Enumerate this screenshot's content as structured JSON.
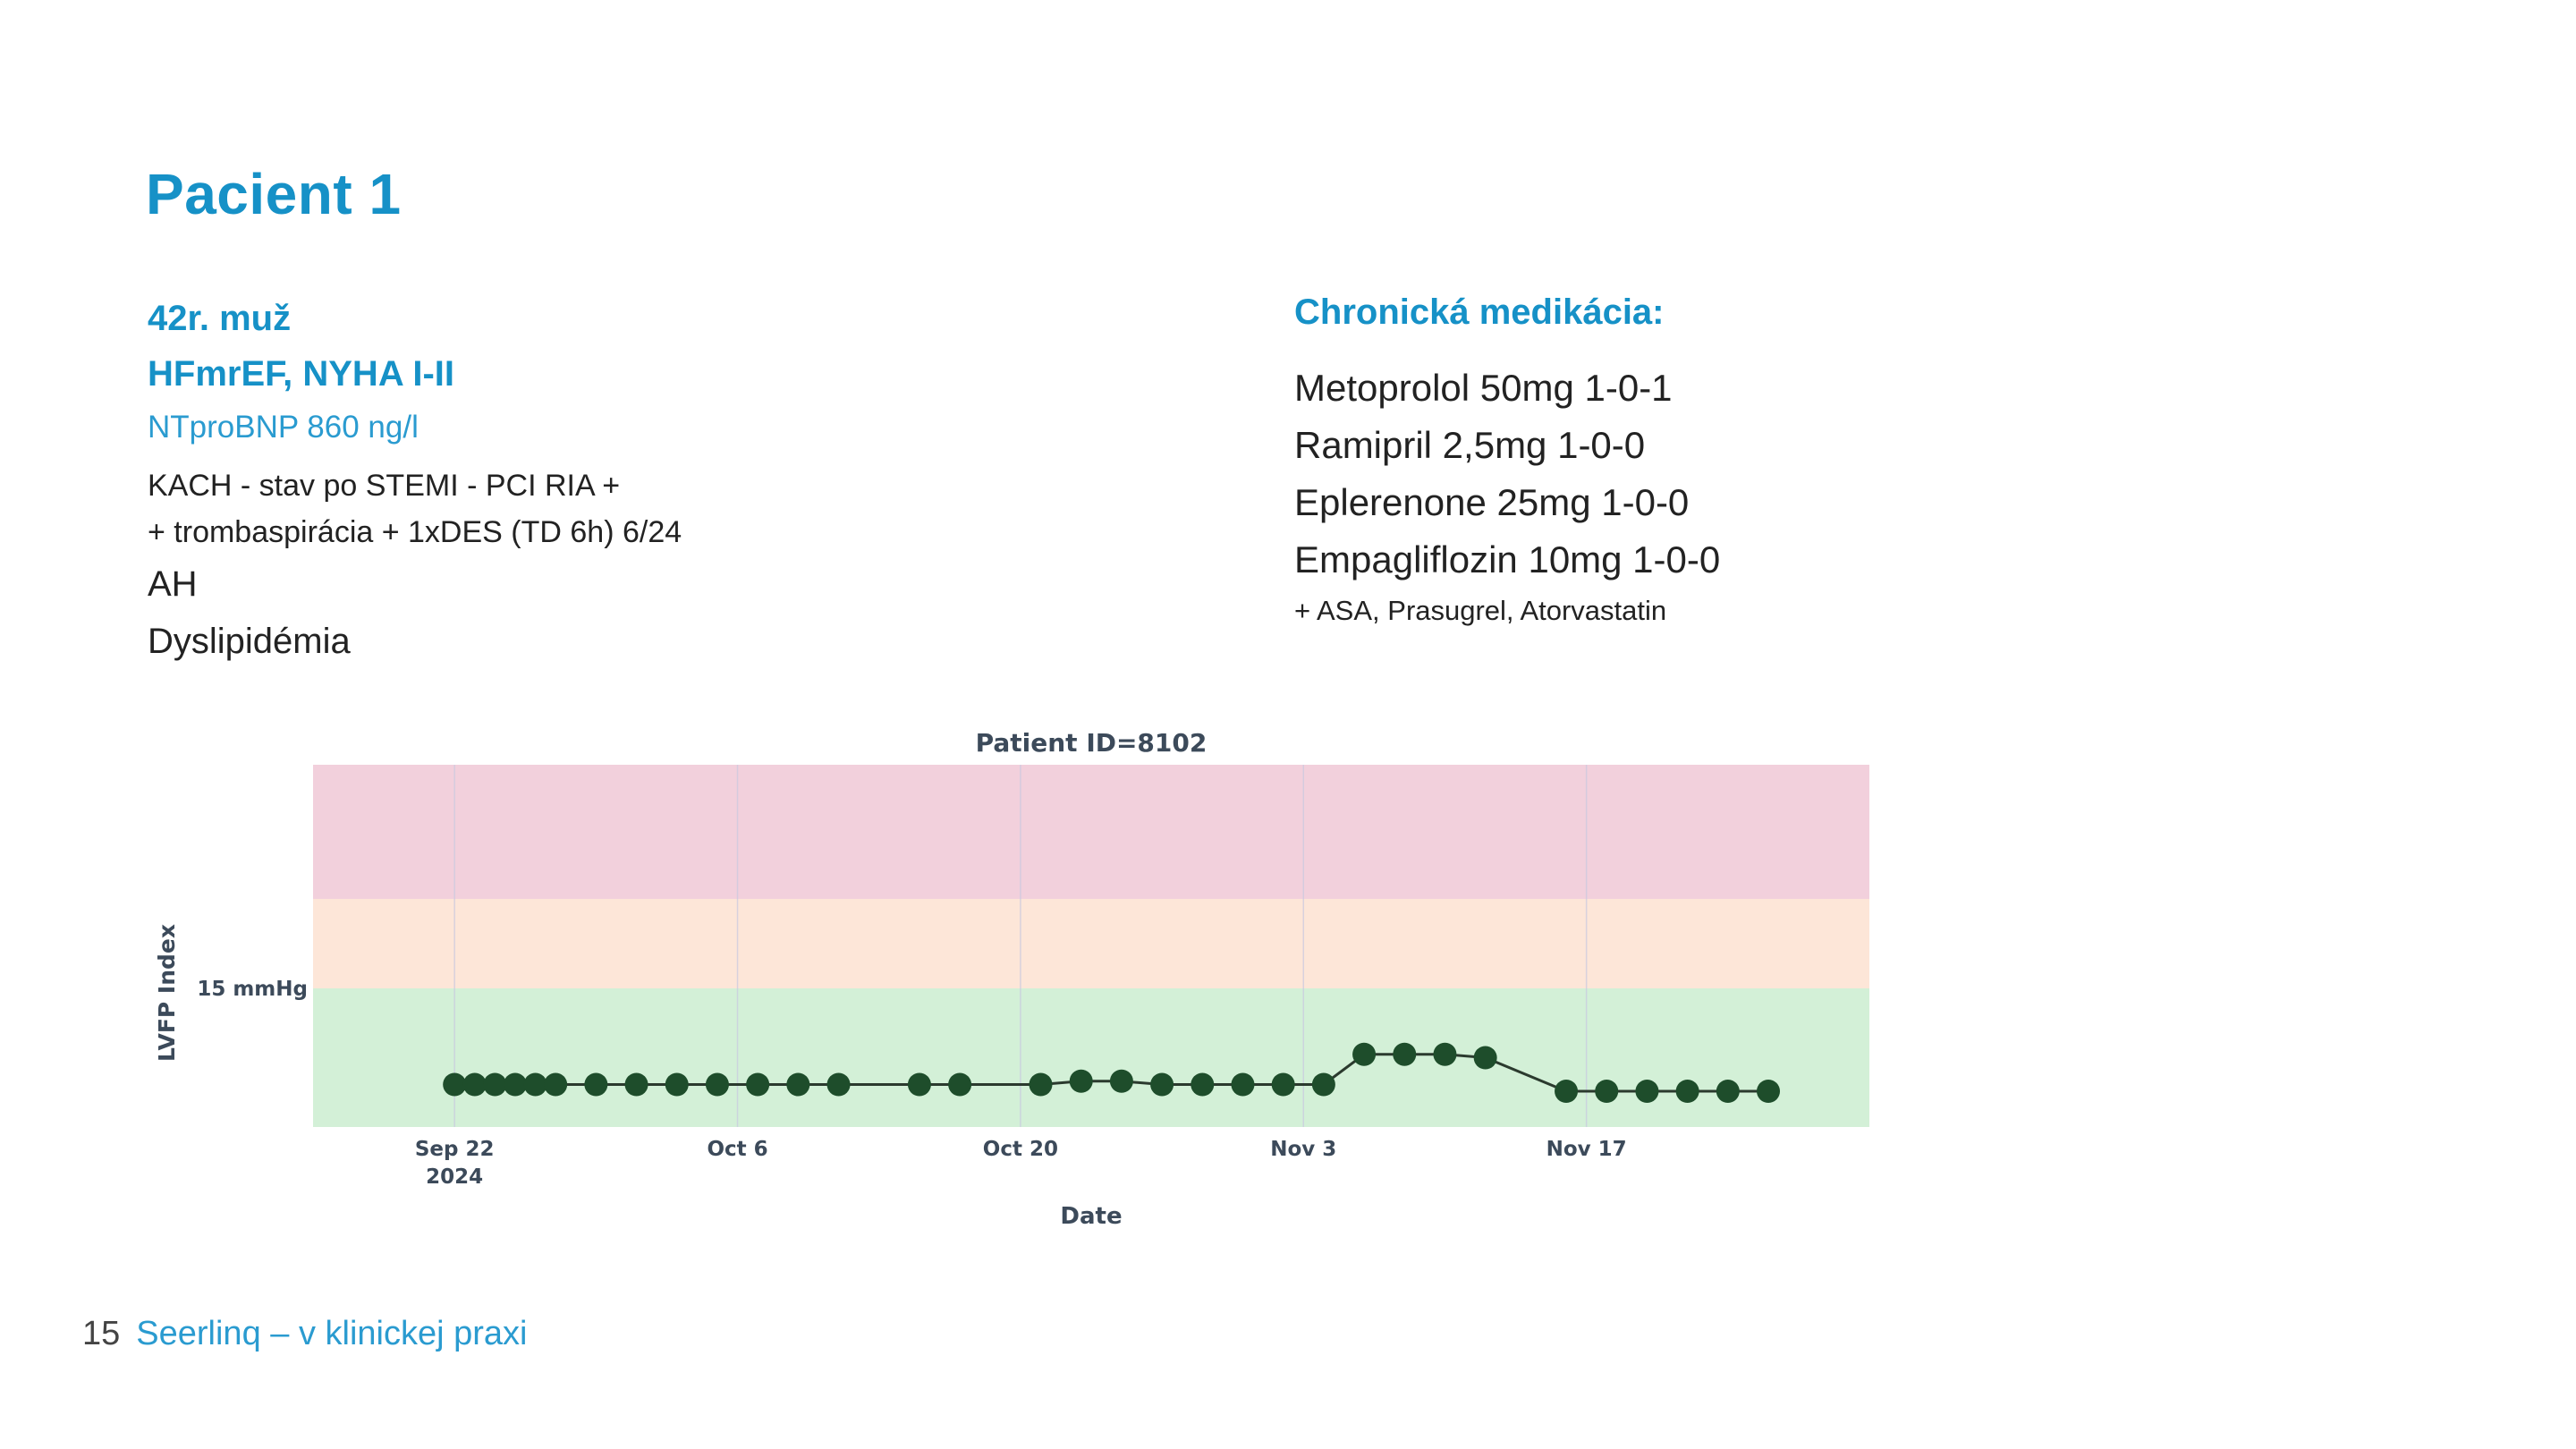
{
  "slide": {
    "title": "Pacient 1",
    "left": {
      "line1": "42r. muž",
      "line2": "HFmrEF, NYHA I-II",
      "line3": "NTproBNP 860 ng/l",
      "line4": "KACH - stav po STEMI - PCI RIA +",
      "line5": "+ trombaspirácia + 1xDES (TD 6h) 6/24",
      "line6": "AH",
      "line7": "Dyslipidémia"
    },
    "right": {
      "heading": "Chronická medikácia:",
      "meds": [
        "Metoprolol 50mg 1-0-1",
        "Ramipril 2,5mg 1-0-0",
        "Eplerenone 25mg 1-0-0",
        "Empagliflozin 10mg 1-0-0"
      ],
      "note": "+ ASA, Prasugrel, Atorvastatin"
    },
    "footer": {
      "page_number": "15",
      "text": "Seerlinq – v klinickej praxi"
    }
  },
  "colors": {
    "accent": "#1691c7",
    "band_red": "#f2d0dc",
    "band_orange": "#fde6d8",
    "band_green": "#d3f0d7",
    "marker": "#1e4d2b"
  },
  "chart_data": {
    "type": "line",
    "title": "Patient ID=8102",
    "xlabel": "Date",
    "ylabel": "LVFP Index",
    "y_tick_label": "15 mmHg",
    "x_ticks": [
      {
        "date": "2024-09-22",
        "label": "Sep 22",
        "sublabel": "2024"
      },
      {
        "date": "2024-10-06",
        "label": "Oct 6",
        "sublabel": ""
      },
      {
        "date": "2024-10-20",
        "label": "Oct 20",
        "sublabel": ""
      },
      {
        "date": "2024-11-03",
        "label": "Nov 3",
        "sublabel": ""
      },
      {
        "date": "2024-11-17",
        "label": "Nov 17",
        "sublabel": ""
      }
    ],
    "x_range": [
      "2024-09-15",
      "2024-12-01"
    ],
    "bands": [
      {
        "name": "high",
        "color": "#f2d0dc"
      },
      {
        "name": "elevated",
        "color": "#fde6d8"
      },
      {
        "name": "normal",
        "color": "#d3f0d7"
      }
    ],
    "series": [
      {
        "points": [
          [
            "2024-09-22",
            0.1
          ],
          [
            "2024-09-23",
            0.1
          ],
          [
            "2024-09-24",
            0.1
          ],
          [
            "2024-09-25",
            0.1
          ],
          [
            "2024-09-26",
            0.1
          ],
          [
            "2024-09-27",
            0.1
          ],
          [
            "2024-09-29",
            0.1
          ],
          [
            "2024-10-01",
            0.1
          ],
          [
            "2024-10-03",
            0.1
          ],
          [
            "2024-10-05",
            0.1
          ],
          [
            "2024-10-07",
            0.1
          ],
          [
            "2024-10-09",
            0.1
          ],
          [
            "2024-10-11",
            0.1
          ],
          [
            "2024-10-15",
            0.1
          ],
          [
            "2024-10-17",
            0.1
          ],
          [
            "2024-10-21",
            0.1
          ],
          [
            "2024-10-23",
            0.15
          ],
          [
            "2024-10-25",
            0.15
          ],
          [
            "2024-10-27",
            0.1
          ],
          [
            "2024-10-29",
            0.1
          ],
          [
            "2024-10-31",
            0.1
          ],
          [
            "2024-11-02",
            0.1
          ],
          [
            "2024-11-04",
            0.1
          ],
          [
            "2024-11-06",
            0.55
          ],
          [
            "2024-11-08",
            0.55
          ],
          [
            "2024-11-10",
            0.55
          ],
          [
            "2024-11-12",
            0.5
          ],
          [
            "2024-11-16",
            0.0
          ],
          [
            "2024-11-18",
            0.0
          ],
          [
            "2024-11-20",
            0.0
          ],
          [
            "2024-11-22",
            0.0
          ],
          [
            "2024-11-24",
            0.0
          ],
          [
            "2024-11-26",
            0.0
          ]
        ]
      }
    ]
  }
}
